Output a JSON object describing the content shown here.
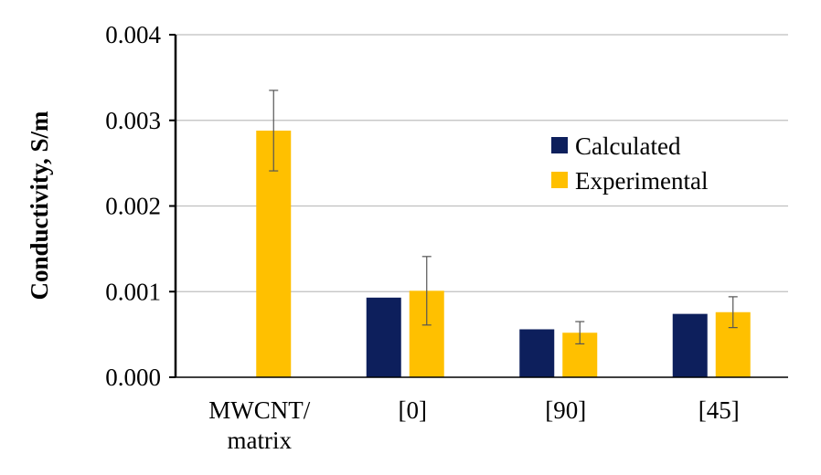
{
  "chart_data": {
    "type": "bar",
    "title": "",
    "xlabel": "",
    "ylabel": "Conductivity, S/m",
    "ylim": [
      0,
      0.004
    ],
    "yticks": [
      "0.000",
      "0.001",
      "0.002",
      "0.003",
      "0.004"
    ],
    "categories": [
      [
        "MWCNT/",
        "matrix"
      ],
      [
        "[0]"
      ],
      [
        "[90]"
      ],
      [
        "[45]"
      ]
    ],
    "series": [
      {
        "name": "Calculated",
        "color": "#0d1f5c",
        "values": [
          null,
          0.00093,
          0.00056,
          0.00074
        ],
        "errors": [
          null,
          null,
          null,
          null
        ]
      },
      {
        "name": "Experimental",
        "color": "#ffc000",
        "values": [
          0.00288,
          0.00101,
          0.00052,
          0.00076
        ],
        "errors": [
          0.00047,
          0.0004,
          0.00013,
          0.00018
        ]
      }
    ],
    "legend_position": "top-right",
    "grid": true
  }
}
